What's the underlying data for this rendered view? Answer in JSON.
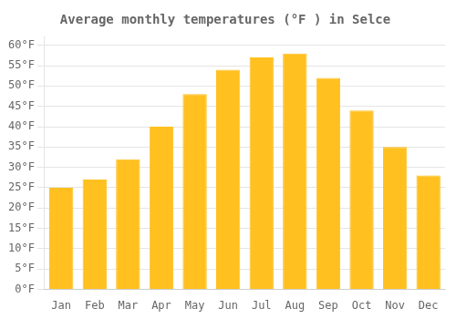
{
  "chart_data": {
    "type": "bar",
    "title": "Average monthly temperatures (°F ) in Selce",
    "categories": [
      "Jan",
      "Feb",
      "Mar",
      "Apr",
      "May",
      "Jun",
      "Jul",
      "Aug",
      "Sep",
      "Oct",
      "Nov",
      "Dec"
    ],
    "values": [
      25,
      27,
      32,
      40,
      48,
      54,
      57,
      58,
      52,
      44,
      35,
      28
    ],
    "color": "#FFC020",
    "ylim": [
      0,
      62
    ],
    "yticks": [
      {
        "value": 0,
        "label": "0°F"
      },
      {
        "value": 5,
        "label": "5°F"
      },
      {
        "value": 10,
        "label": "10°F"
      },
      {
        "value": 15,
        "label": "15°F"
      },
      {
        "value": 20,
        "label": "20°F"
      },
      {
        "value": 25,
        "label": "25°F"
      },
      {
        "value": 30,
        "label": "30°F"
      },
      {
        "value": 35,
        "label": "35°F"
      },
      {
        "value": 40,
        "label": "40°F"
      },
      {
        "value": 45,
        "label": "45°F"
      },
      {
        "value": 50,
        "label": "50°F"
      },
      {
        "value": 55,
        "label": "55°F"
      },
      {
        "value": 60,
        "label": "60°F"
      }
    ],
    "grid": true
  }
}
